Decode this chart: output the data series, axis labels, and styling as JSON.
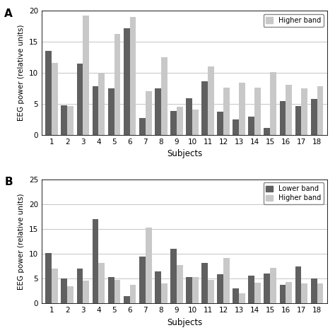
{
  "panel_A": {
    "lower_band": [
      13.5,
      4.8,
      11.5,
      7.8,
      7.5,
      17.2,
      2.7,
      7.5,
      3.9,
      5.9,
      8.6,
      3.8,
      2.5,
      3.0,
      1.1,
      5.5,
      4.7,
      5.8
    ],
    "higher_band": [
      11.6,
      4.7,
      19.2,
      9.9,
      16.3,
      19.0,
      7.0,
      12.5,
      4.5,
      4.1,
      11.0,
      7.6,
      8.4,
      7.6,
      10.1,
      8.1,
      7.5,
      7.9
    ],
    "ylim": [
      0,
      20
    ],
    "yticks": [
      0,
      5,
      10,
      15,
      20
    ],
    "subjects": [
      1,
      2,
      3,
      4,
      5,
      6,
      7,
      8,
      9,
      10,
      11,
      12,
      13,
      14,
      15,
      16,
      17,
      18
    ],
    "legend_label": "Higher band",
    "show_lower_legend": false
  },
  "panel_B": {
    "lower_band": [
      10.1,
      5.0,
      7.0,
      17.0,
      5.3,
      1.5,
      9.5,
      6.5,
      11.0,
      5.3,
      8.1,
      5.9,
      3.1,
      5.6,
      6.0,
      3.8,
      7.5,
      5.1
    ],
    "higher_band": [
      7.0,
      3.5,
      4.6,
      8.2,
      4.8,
      3.8,
      15.2,
      4.1,
      7.7,
      5.3,
      4.7,
      9.2,
      2.0,
      4.2,
      7.1,
      4.4,
      4.0,
      4.0
    ],
    "ylim": [
      0,
      25
    ],
    "yticks": [
      0,
      5,
      10,
      15,
      20,
      25
    ],
    "subjects": [
      1,
      2,
      3,
      4,
      5,
      6,
      7,
      8,
      9,
      10,
      11,
      12,
      13,
      14,
      15,
      16,
      17,
      18
    ],
    "show_lower_legend": true
  },
  "lower_color": "#606060",
  "higher_color": "#c8c8c8",
  "ylabel": "EEG power (relative units)",
  "xlabel": "Subjects",
  "bar_width": 0.4,
  "figsize": [
    4.74,
    4.74
  ],
  "dpi": 100
}
